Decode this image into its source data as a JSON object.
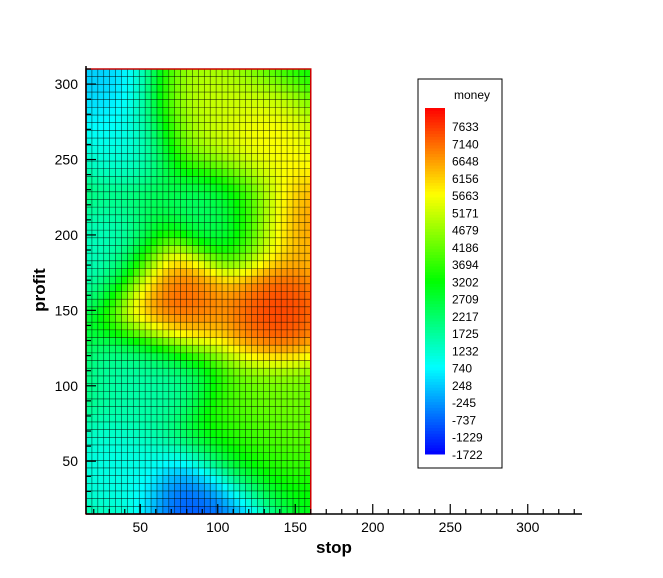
{
  "chart_data": {
    "type": "heatmap",
    "title": "",
    "xlabel": "stop",
    "ylabel": "profit",
    "x_axis": {
      "range": [
        15,
        335
      ],
      "ticks": [
        50,
        100,
        150,
        200,
        250,
        300
      ]
    },
    "y_axis": {
      "range": [
        15,
        312
      ],
      "ticks": [
        50,
        100,
        150,
        200,
        250,
        300
      ]
    },
    "data_extent": {
      "x": [
        15,
        160
      ],
      "y": [
        15,
        310
      ]
    },
    "grid": true,
    "border_color": "#cc0000",
    "colorbar": {
      "title": "money",
      "levels": [
        7633,
        7140,
        6648,
        6156,
        5663,
        5171,
        4679,
        4186,
        3694,
        3202,
        2709,
        2217,
        1725,
        1232,
        740,
        248,
        -245,
        -737,
        -1229,
        -1722
      ],
      "colors": [
        "#ff0000",
        "#ff4000",
        "#ff8000",
        "#ffc000",
        "#ffff00",
        "#c0ff00",
        "#80ff00",
        "#40ff00",
        "#00ff00",
        "#00ff40",
        "#00ff80",
        "#00ffc0",
        "#00ffff",
        "#00c0ff",
        "#0080ff",
        "#0040ff",
        "#0000ff"
      ],
      "placement": "right"
    },
    "hotspots": [
      {
        "stop": 70,
        "profit": 158,
        "money": 7400
      },
      {
        "stop": 140,
        "profit": 150,
        "money": 7600
      },
      {
        "stop": 147,
        "profit": 212,
        "money": 7000
      },
      {
        "stop": 130,
        "profit": 258,
        "money": 5700
      },
      {
        "stop": 90,
        "profit": 285,
        "money": 5000
      },
      {
        "stop": 20,
        "profit": 300,
        "money": -300
      },
      {
        "stop": 35,
        "profit": 270,
        "money": 600
      },
      {
        "stop": 25,
        "profit": 185,
        "money": 900
      },
      {
        "stop": 110,
        "profit": 215,
        "money": 1600
      },
      {
        "stop": 50,
        "profit": 105,
        "money": 1200
      },
      {
        "stop": 30,
        "profit": 45,
        "money": 600
      },
      {
        "stop": 90,
        "profit": 20,
        "money": -1600
      },
      {
        "stop": 120,
        "profit": 55,
        "money": 3200
      },
      {
        "stop": 140,
        "profit": 80,
        "money": 4200
      }
    ],
    "base_value": 2800
  }
}
